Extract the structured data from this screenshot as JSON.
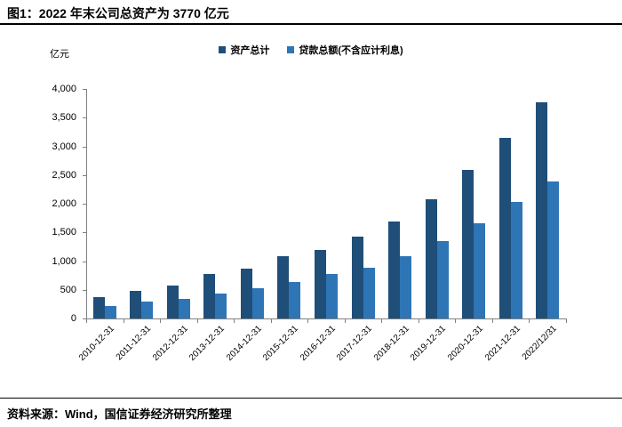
{
  "title": "图1：2022 年末公司总资产为 3770 亿元",
  "source": "资料来源：Wind，国信证券经济研究所整理",
  "colors": {
    "assets_series": "#1F4E79",
    "loans_series": "#2E75B6",
    "axis": "#808080",
    "rule": "#000000",
    "text": "#000000"
  },
  "chart_data": {
    "type": "bar",
    "title": "图1：2022 年末公司总资产为 3770 亿元",
    "xlabel": "",
    "ylabel": "亿元",
    "ylim": [
      0,
      4000
    ],
    "ytick_interval": 500,
    "ytick_labels": [
      "0",
      "500",
      "1,000",
      "1,500",
      "2,000",
      "2,500",
      "3,000",
      "3,500",
      "4,000"
    ],
    "grid": false,
    "legend_position": "top-center",
    "categories": [
      "2010-12-31",
      "2011-12-31",
      "2012-12-31",
      "2013-12-31",
      "2014-12-31",
      "2015-12-31",
      "2016-12-31",
      "2017-12-31",
      "2018-12-31",
      "2019-12-31",
      "2020-12-31",
      "2021-12-31",
      "2022/12/31"
    ],
    "series": [
      {
        "name": "资产总计",
        "color": "#1F4E79",
        "values": [
          370,
          480,
          580,
          780,
          870,
          1080,
          1200,
          1430,
          1690,
          2080,
          2590,
          3140,
          3770
        ]
      },
      {
        "name": "贷款总额(不含应计利息)",
        "color": "#2E75B6",
        "values": [
          220,
          290,
          340,
          430,
          520,
          630,
          780,
          880,
          1090,
          1350,
          1660,
          2030,
          2390
        ]
      }
    ]
  }
}
